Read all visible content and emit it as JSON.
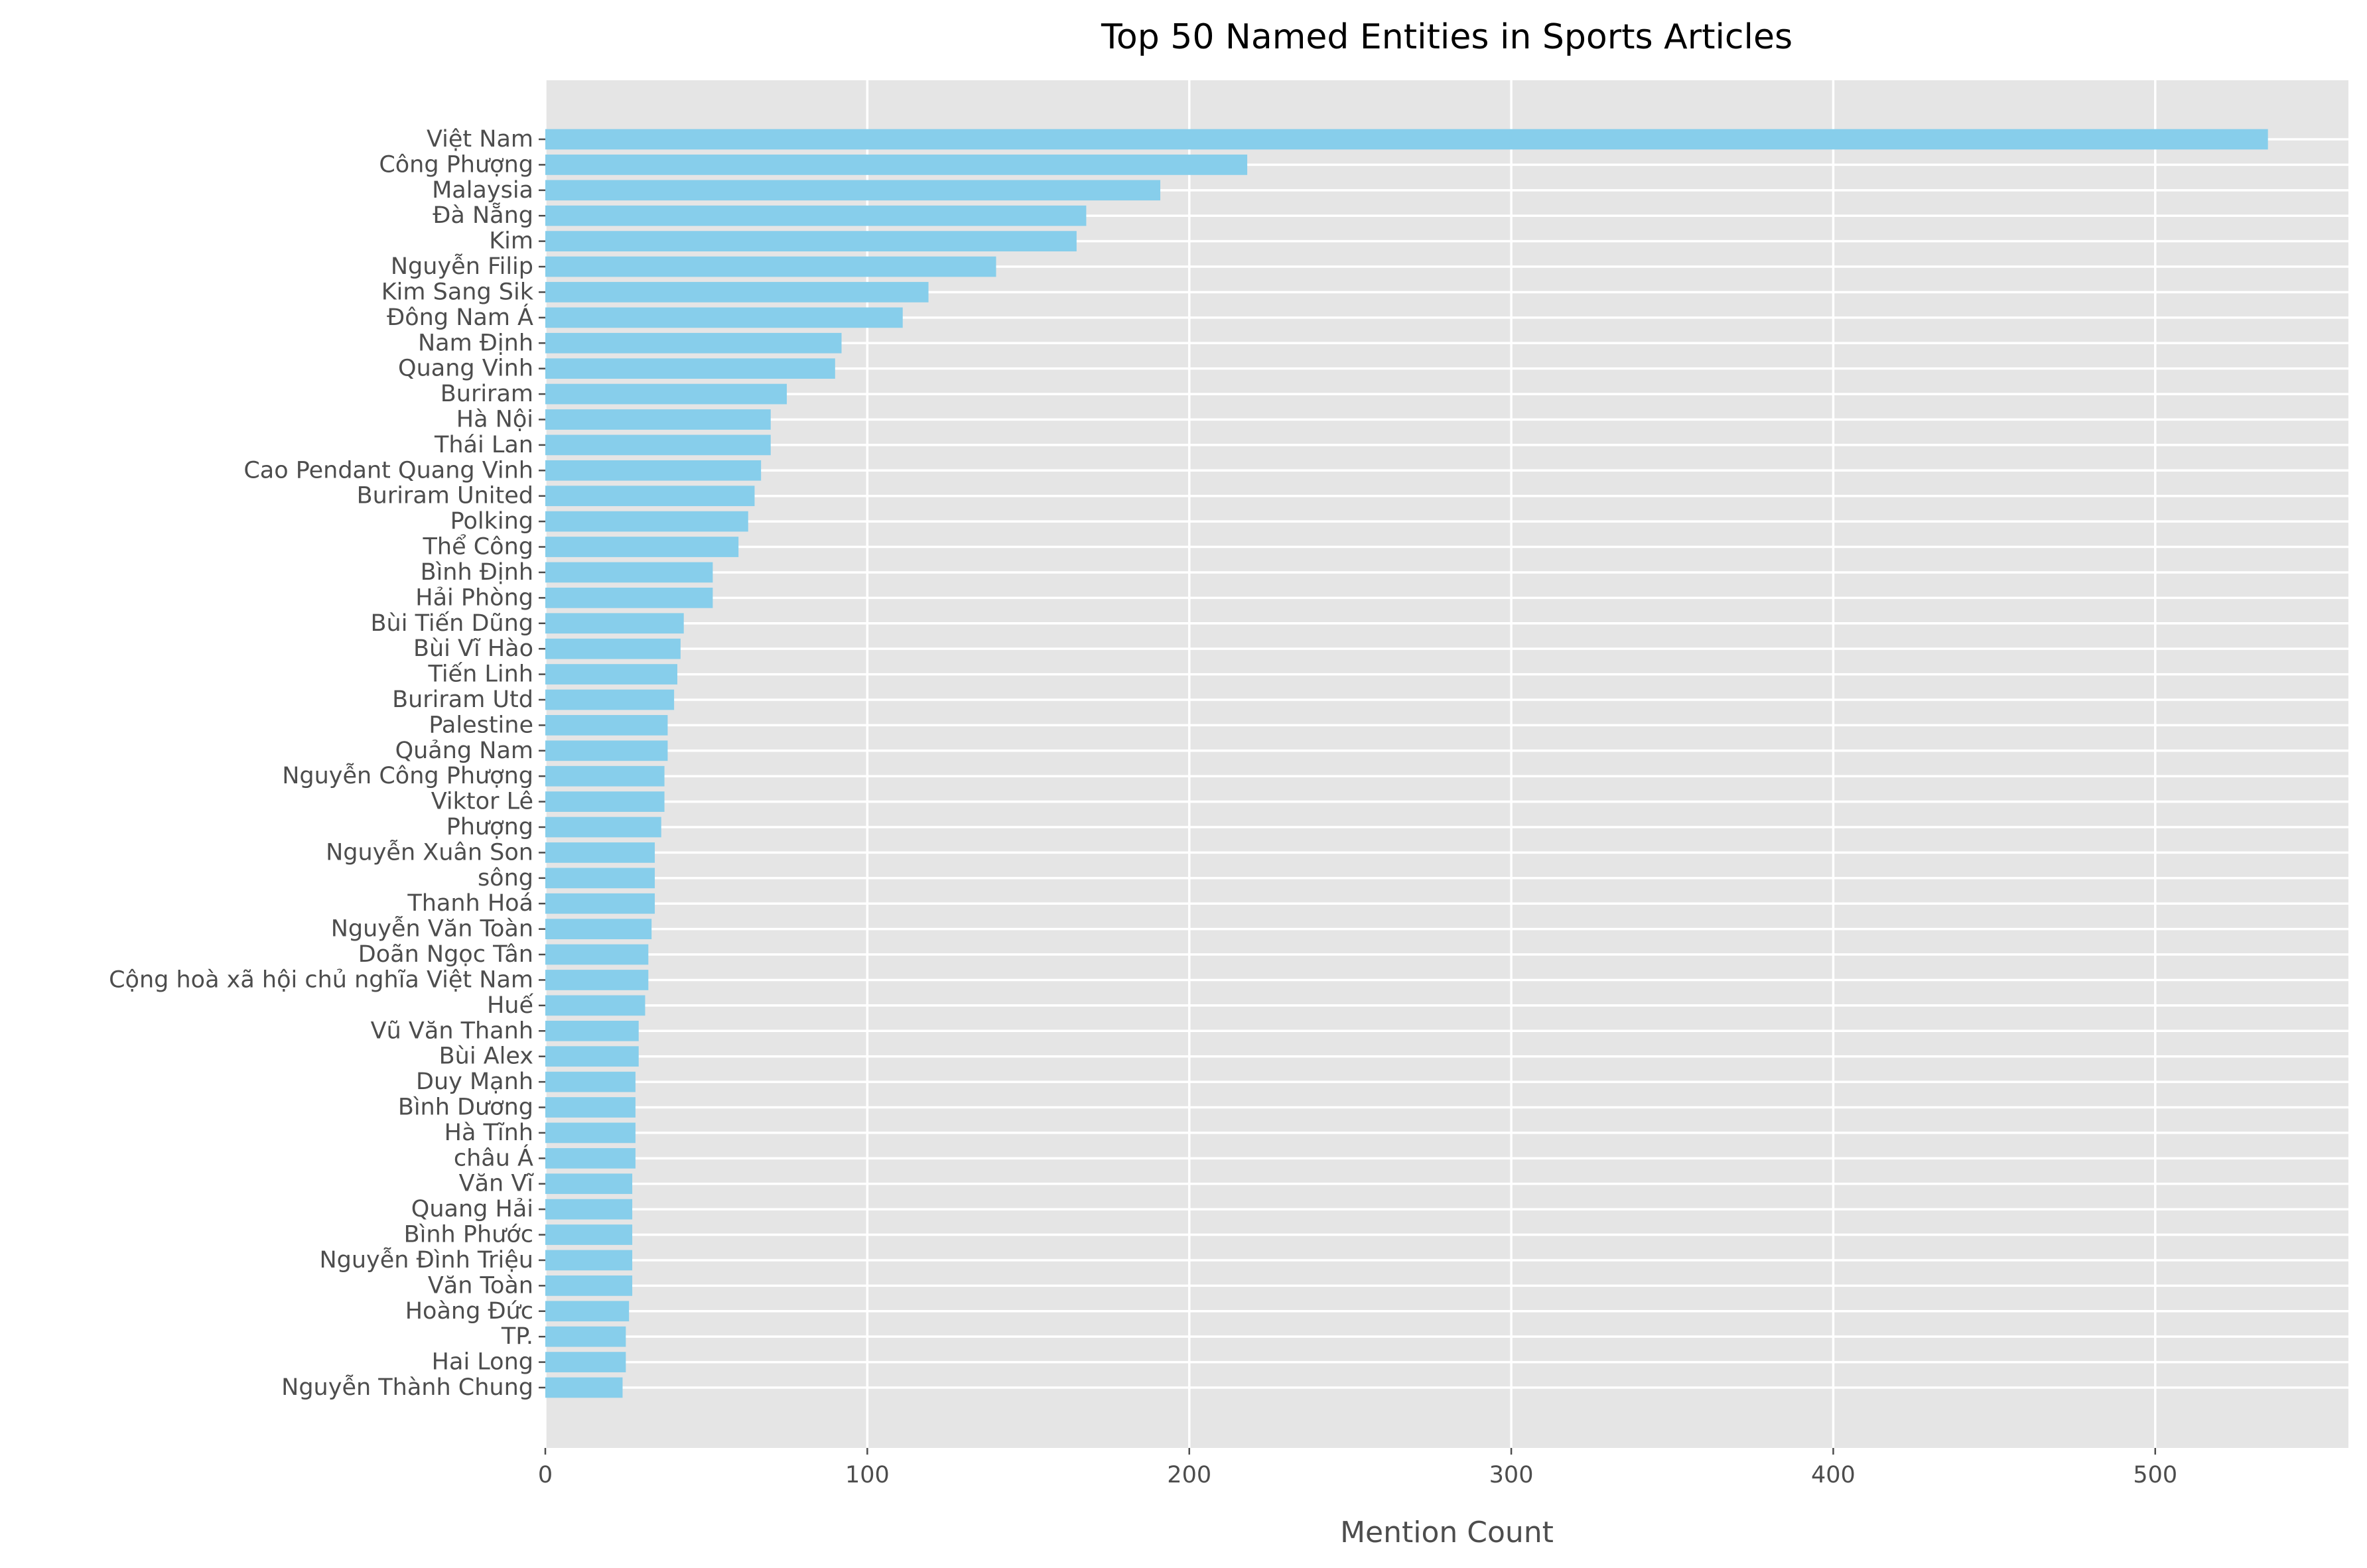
{
  "chart_data": {
    "type": "bar",
    "orientation": "horizontal",
    "title": "Top 50 Named Entities in Sports Articles",
    "xlabel": "Mention Count",
    "ylabel": "",
    "xlim": [
      0,
      560
    ],
    "xticks": [
      0,
      100,
      200,
      300,
      400,
      500
    ],
    "grid": true,
    "bar_color": "#87CEEB",
    "background_color": "#E5E5E5",
    "grid_color": "#FFFFFF",
    "categories": [
      "Việt Nam",
      "Công Phượng",
      "Malaysia",
      "Đà Nẵng",
      "Kim",
      "Nguyễn Filip",
      "Kim Sang Sik",
      "Đông Nam Á",
      "Nam Định",
      "Quang Vinh",
      "Buriram",
      "Hà Nội",
      "Thái Lan",
      "Cao Pendant Quang Vinh",
      "Buriram United",
      "Polking",
      "Thể Công",
      "Bình Định",
      "Hải Phòng",
      "Bùi Tiến Dũng",
      "Bùi Vĩ Hào",
      "Tiến Linh",
      "Buriram Utd",
      "Palestine",
      "Quảng Nam",
      "Nguyễn Công Phượng",
      "Viktor Lê",
      "Phượng",
      "Nguyễn Xuân Son",
      "sông",
      "Thanh Hoá",
      "Nguyễn Văn Toàn",
      "Doãn Ngọc Tân",
      "Cộng hoà xã hội chủ nghĩa Việt Nam",
      "Huế",
      "Vũ Văn Thanh",
      "Bùi Alex",
      "Duy Mạnh",
      "Bình Dương",
      "Hà Tĩnh",
      "châu Á",
      "Văn Vĩ",
      "Quang Hải",
      "Bình Phước",
      "Nguyễn Đình Triệu",
      "Văn Toàn",
      "Hoàng Đức",
      "TP.",
      "Hai Long",
      "Nguyễn Thành Chung"
    ],
    "values": [
      535,
      218,
      191,
      168,
      165,
      140,
      119,
      111,
      92,
      90,
      75,
      70,
      70,
      67,
      65,
      63,
      60,
      52,
      52,
      43,
      42,
      41,
      40,
      38,
      38,
      37,
      37,
      36,
      34,
      34,
      34,
      33,
      32,
      32,
      31,
      29,
      29,
      28,
      28,
      28,
      28,
      27,
      27,
      27,
      27,
      27,
      26,
      25,
      25,
      24
    ]
  }
}
